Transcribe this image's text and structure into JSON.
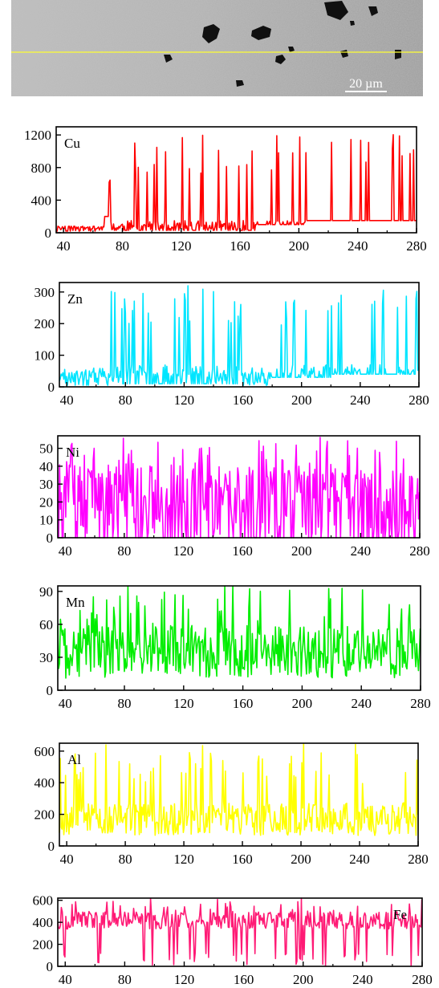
{
  "micrograph": {
    "scale_label": "20 µm",
    "line_color": "#ffff33"
  },
  "chart_data": [
    {
      "type": "line",
      "element": "Cu",
      "color": "#ff0000",
      "xlim": [
        35,
        280
      ],
      "ylim": [
        0,
        1300
      ],
      "xticks": [
        40,
        80,
        120,
        160,
        200,
        240,
        280
      ],
      "yticks": [
        0,
        400,
        800,
        1200
      ],
      "label_pos": "top-left",
      "profile": {
        "base": 60,
        "noise": 30,
        "seed": 11,
        "segments": [
          [
            35,
            68,
            20,
            80
          ],
          [
            68,
            72,
            200,
            900
          ],
          [
            72,
            170,
            30,
            1200
          ],
          [
            170,
            205,
            100,
            1200
          ],
          [
            205,
            280,
            150,
            1250
          ]
        ]
      }
    },
    {
      "type": "line",
      "element": "Zn",
      "color": "#00e5ff",
      "xlim": [
        35,
        280
      ],
      "ylim": [
        0,
        330
      ],
      "xticks": [
        40,
        80,
        120,
        160,
        200,
        240,
        280
      ],
      "yticks": [
        0,
        100,
        200,
        300
      ],
      "label_pos": "top-left",
      "profile": {
        "base": 25,
        "noise": 15,
        "seed": 23,
        "segments": [
          [
            35,
            70,
            5,
            60
          ],
          [
            70,
            160,
            10,
            320
          ],
          [
            160,
            180,
            5,
            60
          ],
          [
            180,
            220,
            30,
            300
          ],
          [
            220,
            280,
            40,
            320
          ]
        ]
      }
    },
    {
      "type": "line",
      "element": "Ni",
      "color": "#ff00ff",
      "xlim": [
        35,
        280
      ],
      "ylim": [
        0,
        57
      ],
      "xticks": [
        40,
        80,
        120,
        160,
        200,
        240,
        280
      ],
      "yticks": [
        0,
        10,
        20,
        30,
        40,
        50
      ],
      "label_pos": "top-left",
      "profile": {
        "base": 14,
        "noise": 9,
        "seed": 37,
        "segments": [
          [
            35,
            280,
            0,
            57
          ]
        ]
      }
    },
    {
      "type": "line",
      "element": "Mn",
      "color": "#00ee00",
      "xlim": [
        35,
        280
      ],
      "ylim": [
        0,
        95
      ],
      "xticks": [
        40,
        80,
        120,
        160,
        200,
        240,
        280
      ],
      "yticks": [
        0,
        30,
        60,
        90
      ],
      "label_pos": "top-left",
      "profile": {
        "base": 35,
        "noise": 15,
        "seed": 41,
        "segments": [
          [
            35,
            280,
            0,
            95
          ]
        ]
      }
    },
    {
      "type": "line",
      "element": "Al",
      "color": "#ffff00",
      "xlim": [
        35,
        280
      ],
      "ylim": [
        0,
        650
      ],
      "xticks": [
        40,
        80,
        120,
        160,
        200,
        240,
        280
      ],
      "yticks": [
        0,
        200,
        400,
        600
      ],
      "label_pos": "top-left",
      "profile": {
        "base": 170,
        "noise": 35,
        "seed": 53,
        "segments": [
          [
            35,
            280,
            0,
            650
          ]
        ]
      }
    },
    {
      "type": "line",
      "element": "Fe",
      "color": "#ff1a75",
      "xlim": [
        35,
        280
      ],
      "ylim": [
        0,
        620
      ],
      "xticks": [
        40,
        80,
        120,
        160,
        200,
        240,
        280
      ],
      "yticks": [
        0,
        200,
        400,
        600
      ],
      "label_pos": "top-right",
      "profile": {
        "base": 420,
        "noise": 50,
        "seed": 67,
        "segments": [
          [
            35,
            280,
            0,
            620
          ]
        ]
      }
    }
  ]
}
